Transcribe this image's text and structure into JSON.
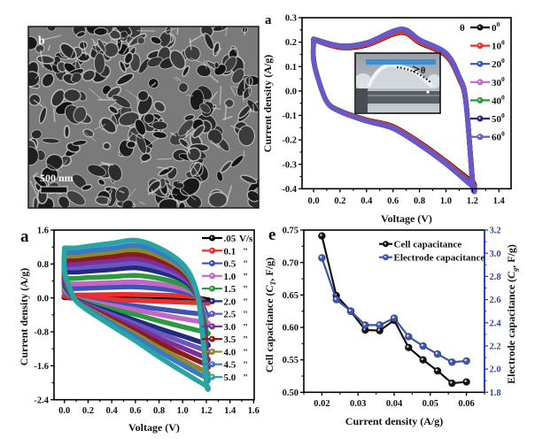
{
  "sem": {
    "panel_label": "b",
    "scale_bar_label": "500 nm"
  },
  "chart_data": [
    {
      "id": "bending-cv",
      "panel_label": "a",
      "type": "line",
      "title": "",
      "xlabel": "Voltage (V)",
      "ylabel": "Current density (A/g)",
      "xlim": [
        -0.087,
        1.492
      ],
      "ylim": [
        -0.4,
        0.3
      ],
      "grid": false,
      "xticks": [
        0,
        0.2,
        0.4,
        0.6,
        0.8,
        1.0,
        1.2,
        1.4
      ],
      "xtick_labels": [
        "0.0",
        "0.2",
        "0.4",
        "0.6",
        "0.8",
        "1.0",
        "1.2",
        "1.4"
      ],
      "yticks": [
        -0.4,
        -0.3,
        -0.2,
        -0.1,
        0,
        0.1,
        0.2,
        0.3
      ],
      "ytick_labels": [
        "-0.4",
        "-0.3",
        "-0.2",
        "-0.1",
        "0.0",
        "0.1",
        "0.2",
        "0.3"
      ],
      "legend": {
        "title": "θ",
        "position": "top-right"
      },
      "inset": {
        "angle_label": "θ"
      },
      "x": [
        0,
        0.2,
        0.4,
        0.6,
        0.7,
        0.8,
        1.0,
        1.1,
        1.15,
        1.2,
        1.2,
        1.0,
        0.8,
        0.6,
        0.4,
        0.2,
        0.1,
        0.03,
        0,
        0
      ],
      "series": [
        {
          "name": "0",
          "unit_sup": "0",
          "color": "#000000",
          "values": [
            0.21,
            0.178,
            0.188,
            0.232,
            0.236,
            0.198,
            0.145,
            0.05,
            -0.045,
            -0.36,
            -0.372,
            -0.288,
            -0.21,
            -0.145,
            -0.118,
            -0.081,
            -0.043,
            0.058,
            0.13,
            0.21
          ]
        },
        {
          "name": "10",
          "unit_sup": "0",
          "color": "#e8312f",
          "values": [
            0.211,
            0.18,
            0.19,
            0.234,
            0.238,
            0.2,
            0.147,
            0.052,
            -0.044,
            -0.365,
            -0.376,
            -0.29,
            -0.212,
            -0.147,
            -0.119,
            -0.082,
            -0.043,
            0.058,
            0.13,
            0.211
          ]
        },
        {
          "name": "20",
          "unit_sup": "0",
          "color": "#3d55b0",
          "values": [
            0.212,
            0.184,
            0.196,
            0.243,
            0.248,
            0.208,
            0.153,
            0.057,
            -0.039,
            -0.375,
            -0.386,
            -0.296,
            -0.218,
            -0.152,
            -0.122,
            -0.084,
            -0.044,
            0.058,
            0.131,
            0.212
          ]
        },
        {
          "name": "30",
          "unit_sup": "0",
          "color": "#c267c8",
          "values": [
            0.212,
            0.184,
            0.196,
            0.244,
            0.249,
            0.209,
            0.154,
            0.057,
            -0.039,
            -0.377,
            -0.388,
            -0.297,
            -0.218,
            -0.152,
            -0.123,
            -0.084,
            -0.044,
            0.058,
            0.131,
            0.212
          ]
        },
        {
          "name": "40",
          "unit_sup": "0",
          "color": "#2a9a3c",
          "values": [
            0.213,
            0.185,
            0.197,
            0.244,
            0.249,
            0.209,
            0.154,
            0.058,
            -0.038,
            -0.378,
            -0.389,
            -0.297,
            -0.219,
            -0.153,
            -0.123,
            -0.084,
            -0.044,
            0.058,
            0.131,
            0.213
          ]
        },
        {
          "name": "50",
          "unit_sup": "0",
          "color": "#222a7e",
          "values": [
            0.213,
            0.185,
            0.197,
            0.245,
            0.25,
            0.21,
            0.155,
            0.058,
            -0.038,
            -0.379,
            -0.389,
            -0.298,
            -0.219,
            -0.153,
            -0.123,
            -0.084,
            -0.044,
            0.058,
            0.131,
            0.213
          ]
        },
        {
          "name": "60",
          "unit_sup": "0",
          "color": "#6a58c8",
          "values": [
            0.213,
            0.185,
            0.197,
            0.245,
            0.25,
            0.21,
            0.155,
            0.058,
            -0.038,
            -0.38,
            -0.39,
            -0.298,
            -0.219,
            -0.153,
            -0.123,
            -0.084,
            -0.044,
            0.058,
            0.131,
            0.213
          ]
        }
      ]
    },
    {
      "id": "scan-rate-cv",
      "panel_label": "a",
      "type": "line",
      "title": "",
      "xlabel": "Voltage (V)",
      "ylabel": "Current density (A/g)",
      "xlim": [
        -0.088,
        1.605
      ],
      "ylim": [
        -2.4,
        1.6
      ],
      "grid": false,
      "xticks": [
        0,
        0.2,
        0.4,
        0.6,
        0.8,
        1.0,
        1.2,
        1.4,
        1.6
      ],
      "xtick_labels": [
        "0.0",
        "0.2",
        "0.4",
        "0.6",
        "0.8",
        "1.0",
        "1.2",
        "1.4",
        "1.6"
      ],
      "yticks": [
        -2.4,
        -1.6,
        -0.8,
        0,
        0.8,
        1.6
      ],
      "ytick_labels": [
        "-2.4",
        "-1.6",
        "-0.8",
        "0.0",
        "0.8",
        "1.6"
      ],
      "legend": {
        "position": "top-right"
      },
      "x": [
        0,
        0.1,
        0.2,
        0.4,
        0.6,
        0.8,
        1.0,
        1.1,
        1.15,
        1.2,
        1.2,
        1.0,
        0.8,
        0.6,
        0.4,
        0.2,
        0.1,
        0.05,
        0,
        0
      ],
      "series": [
        {
          "rate_label": ".05",
          "unit_label": "V/s",
          "color": "#000000",
          "values": [
            0.02,
            0.02,
            0.02,
            0.03,
            0.03,
            0.02,
            0.02,
            0.01,
            -0.01,
            -0.04,
            -0.04,
            -0.03,
            -0.03,
            -0.02,
            -0.01,
            -0.01,
            0,
            0,
            0.01,
            0.02
          ]
        },
        {
          "rate_label": "0.1",
          "unit_label": "\"",
          "color": "#e8312f",
          "values": [
            0.07,
            0.07,
            0.07,
            0.08,
            0.08,
            0.07,
            0.05,
            0.02,
            -0.02,
            -0.12,
            -0.12,
            -0.1,
            -0.08,
            -0.06,
            -0.04,
            -0.02,
            0,
            0.01,
            0.04,
            0.07
          ]
        },
        {
          "rate_label": "0.5",
          "unit_label": "\"",
          "color": "#3d55b0",
          "values": [
            0.22,
            0.22,
            0.23,
            0.25,
            0.26,
            0.22,
            0.15,
            0.06,
            -0.07,
            -0.38,
            -0.39,
            -0.33,
            -0.26,
            -0.19,
            -0.13,
            -0.06,
            -0.02,
            0.04,
            0.13,
            0.22
          ]
        },
        {
          "rate_label": "1.0",
          "unit_label": "\"",
          "color": "#c267c8",
          "values": [
            0.33,
            0.33,
            0.34,
            0.36,
            0.38,
            0.33,
            0.22,
            0.09,
            -0.11,
            -0.56,
            -0.58,
            -0.49,
            -0.39,
            -0.28,
            -0.18,
            -0.08,
            -0.02,
            0.06,
            0.18,
            0.33
          ]
        },
        {
          "rate_label": "1.5",
          "unit_label": "\"",
          "color": "#2a9a3c",
          "values": [
            0.46,
            0.46,
            0.48,
            0.5,
            0.53,
            0.46,
            0.31,
            0.12,
            -0.15,
            -0.78,
            -0.81,
            -0.68,
            -0.54,
            -0.39,
            -0.26,
            -0.12,
            -0.03,
            0.08,
            0.26,
            0.46
          ]
        },
        {
          "rate_label": "2.0",
          "unit_label": "\"",
          "color": "#222a7e",
          "values": [
            0.61,
            0.61,
            0.63,
            0.67,
            0.71,
            0.61,
            0.42,
            0.16,
            -0.2,
            -1.04,
            -1.08,
            -0.9,
            -0.72,
            -0.53,
            -0.34,
            -0.16,
            -0.04,
            0.1,
            0.34,
            0.61
          ]
        },
        {
          "rate_label": "2.5",
          "unit_label": "\"",
          "color": "#6a58c0",
          "values": [
            0.71,
            0.71,
            0.73,
            0.77,
            0.82,
            0.71,
            0.48,
            0.19,
            -0.23,
            -1.2,
            -1.24,
            -1.04,
            -0.83,
            -0.61,
            -0.4,
            -0.18,
            -0.05,
            0.12,
            0.4,
            0.71
          ]
        },
        {
          "rate_label": "3.0",
          "unit_label": "\"",
          "color": "#7c2f9a",
          "values": [
            0.8,
            0.8,
            0.83,
            0.88,
            0.92,
            0.8,
            0.54,
            0.21,
            -0.26,
            -1.36,
            -1.41,
            -1.18,
            -0.95,
            -0.69,
            -0.45,
            -0.2,
            -0.05,
            0.14,
            0.45,
            0.8
          ]
        },
        {
          "rate_label": "3.5",
          "unit_label": "\"",
          "color": "#8b1a1a",
          "values": [
            0.9,
            0.9,
            0.93,
            0.98,
            1.03,
            0.9,
            0.61,
            0.24,
            -0.29,
            -1.52,
            -1.57,
            -1.32,
            -1.06,
            -0.77,
            -0.5,
            -0.23,
            -0.06,
            0.15,
            0.5,
            0.9
          ]
        },
        {
          "rate_label": "4.0",
          "unit_label": "\"",
          "color": "#8c8a2e",
          "values": [
            0.99,
            0.99,
            1.02,
            1.08,
            1.14,
            0.99,
            0.67,
            0.26,
            -0.32,
            -1.68,
            -1.74,
            -1.46,
            -1.17,
            -0.85,
            -0.55,
            -0.25,
            -0.07,
            0.17,
            0.55,
            0.99
          ]
        },
        {
          "rate_label": "4.5",
          "unit_label": "\"",
          "color": "#3a78c9",
          "values": [
            1.07,
            1.07,
            1.11,
            1.17,
            1.24,
            1.07,
            0.73,
            0.28,
            -0.35,
            -1.82,
            -1.88,
            -1.58,
            -1.26,
            -0.92,
            -0.6,
            -0.27,
            -0.07,
            0.18,
            0.6,
            1.07
          ]
        },
        {
          "rate_label": "5.0",
          "unit_label": "\"",
          "color": "#2aa3a3",
          "values": [
            1.18,
            1.18,
            1.22,
            1.29,
            1.36,
            1.18,
            0.8,
            0.31,
            -0.38,
            -2.0,
            -2.07,
            -1.74,
            -1.39,
            -1.01,
            -0.66,
            -0.3,
            -0.08,
            0.2,
            0.66,
            1.18
          ]
        }
      ]
    },
    {
      "id": "capacitance-vs-current",
      "panel_label": "e",
      "type": "line",
      "title": "",
      "xlabel": "Current density (A/g)",
      "ylabel": {
        "before": "Cell capacitance (",
        "symbol": "C",
        "subscript": "T",
        "after": ", F/g)"
      },
      "y2label": {
        "before": "Electrode capacitance (",
        "symbol": "C",
        "subscript": "g",
        "after": ", F/g)"
      },
      "xlim": [
        0.015,
        0.065
      ],
      "ylim": [
        0.5,
        0.75
      ],
      "y2lim": [
        1.8,
        3.2
      ],
      "grid": false,
      "xticks": [
        0.02,
        0.03,
        0.04,
        0.05,
        0.06
      ],
      "xtick_labels": [
        "0.02",
        "0.03",
        "0.04",
        "0.05",
        "0.06"
      ],
      "yticks": [
        0.5,
        0.55,
        0.6,
        0.65,
        0.7,
        0.75
      ],
      "ytick_labels": [
        "0.50",
        "0.55",
        "0.60",
        "0.65",
        "0.70",
        "0.75"
      ],
      "y2ticks": [
        1.8,
        2.0,
        2.2,
        2.4,
        2.6,
        2.8,
        3.0,
        3.2
      ],
      "y2tick_labels": [
        "1.8",
        "2.0",
        "2.2",
        "2.4",
        "2.6",
        "2.8",
        "3.0",
        "3.2"
      ],
      "right_axis_color": "#2d47a0",
      "legend": {
        "position": "top-right"
      },
      "x": [
        0.02,
        0.024,
        0.028,
        0.032,
        0.036,
        0.04,
        0.044,
        0.048,
        0.052,
        0.056,
        0.06
      ],
      "series": [
        {
          "name": "Cell capacitance",
          "axis": "left",
          "color": "#111111",
          "values": [
            0.741,
            0.649,
            0.625,
            0.596,
            0.595,
            0.611,
            0.569,
            0.55,
            0.533,
            0.514,
            0.516
          ]
        },
        {
          "name": "Electrode capacitance",
          "axis": "right",
          "color": "#3d55a8",
          "values": [
            2.96,
            2.6,
            2.5,
            2.38,
            2.38,
            2.44,
            2.28,
            2.2,
            2.13,
            2.06,
            2.07
          ]
        }
      ]
    }
  ]
}
